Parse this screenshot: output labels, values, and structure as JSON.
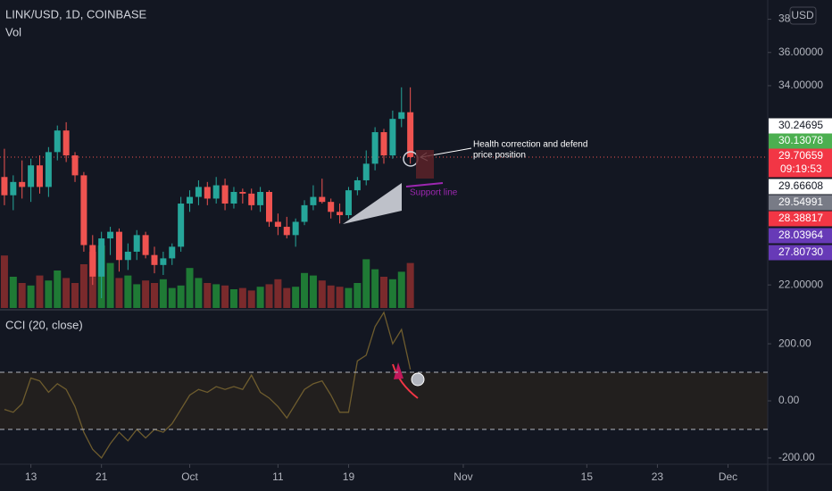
{
  "header": {
    "title": "LINK/USD, 1D, COINBASE",
    "volume_label": "Vol",
    "currency": "USD"
  },
  "chart_data": [
    {
      "type": "candlestick",
      "xlim": [
        -0.5,
        86.5
      ],
      "xticks": [
        {
          "value": 3,
          "label": "13"
        },
        {
          "value": 11,
          "label": "21"
        },
        {
          "value": 21,
          "label": "Oct"
        },
        {
          "value": 31,
          "label": "11"
        },
        {
          "value": 39,
          "label": "19"
        },
        {
          "value": 52,
          "label": "Nov"
        },
        {
          "value": 66,
          "label": "15"
        },
        {
          "value": 74,
          "label": "23"
        },
        {
          "value": 82,
          "label": "Dec"
        }
      ],
      "ylim": [
        20.61,
        39.16
      ],
      "yticks": [
        {
          "value": 22,
          "label": "22.00000"
        },
        {
          "value": 34,
          "label": "34.00000"
        },
        {
          "value": 36,
          "label": "36.00000"
        },
        {
          "value": 38,
          "label": "38"
        }
      ],
      "up_color": "#26a69a",
      "down_color": "#ef5350",
      "open": [
        28.5,
        27.4,
        28.2,
        27.9,
        29.2,
        27.9,
        30.0,
        31.3,
        29.8,
        28.6,
        24.4,
        22.5,
        24.8,
        25.2,
        23.5,
        24.0,
        25.0,
        23.8,
        23.2,
        23.6,
        24.3,
        26.9,
        27.3,
        27.9,
        27.2,
        28.0,
        26.9,
        27.6,
        27.5,
        26.8,
        27.6,
        25.8,
        25.5,
        25.0,
        25.8,
        26.8,
        27.3,
        27.0,
        26.4,
        26.2,
        27.7,
        28.3,
        29.3,
        31.2,
        29.8,
        32.0,
        32.4
      ],
      "high": [
        30.2,
        28.6,
        29.5,
        29.6,
        29.8,
        30.3,
        31.6,
        31.8,
        30.0,
        28.8,
        25.0,
        25.2,
        25.5,
        25.4,
        24.5,
        25.3,
        25.2,
        24.3,
        24.0,
        24.5,
        27.3,
        27.7,
        28.3,
        28.2,
        28.5,
        28.4,
        27.9,
        27.8,
        27.8,
        27.9,
        27.7,
        26.3,
        26.1,
        26.0,
        27.1,
        28.0,
        28.4,
        27.2,
        26.9,
        27.9,
        28.5,
        30.1,
        31.5,
        31.4,
        32.5,
        33.9,
        33.9
      ],
      "low": [
        26.8,
        26.5,
        27.2,
        27.0,
        27.5,
        27.3,
        29.5,
        29.4,
        28.2,
        24.0,
        22.0,
        21.2,
        23.8,
        22.8,
        22.9,
        23.5,
        23.6,
        22.7,
        22.6,
        23.2,
        24.0,
        26.4,
        26.8,
        26.8,
        26.9,
        26.5,
        26.6,
        26.9,
        26.5,
        26.4,
        25.5,
        25.0,
        24.8,
        24.3,
        25.6,
        26.5,
        26.9,
        26.0,
        25.7,
        26.0,
        27.4,
        28.0,
        28.9,
        29.3,
        29.6,
        31.5,
        29.3
      ],
      "close": [
        27.4,
        28.2,
        27.9,
        29.2,
        27.9,
        30.0,
        31.3,
        29.8,
        28.6,
        24.4,
        22.5,
        24.8,
        25.2,
        23.5,
        24.0,
        25.0,
        23.8,
        23.2,
        23.6,
        24.3,
        26.9,
        27.3,
        27.9,
        27.2,
        28.0,
        26.9,
        27.6,
        27.5,
        26.8,
        27.6,
        25.8,
        25.5,
        25.0,
        25.8,
        26.8,
        27.3,
        27.0,
        26.4,
        26.2,
        27.7,
        28.3,
        29.3,
        31.2,
        29.8,
        32.0,
        32.4,
        29.7
      ],
      "volume": {
        "up_color": "#1f7a35",
        "down_color": "#7a2a2c",
        "values": [
          4.2,
          2.5,
          2.0,
          1.8,
          2.6,
          2.2,
          3.0,
          2.4,
          2.0,
          3.5,
          4.5,
          5.0,
          3.6,
          2.4,
          2.6,
          1.9,
          2.2,
          2.0,
          2.3,
          1.6,
          1.8,
          3.2,
          2.4,
          2.0,
          1.9,
          1.8,
          1.5,
          1.6,
          1.4,
          1.7,
          1.9,
          2.3,
          1.6,
          1.7,
          2.8,
          2.6,
          2.2,
          1.8,
          1.7,
          1.6,
          2.0,
          3.9,
          3.1,
          2.5,
          2.3,
          2.9,
          3.6
        ]
      },
      "price_tags": [
        {
          "value": 30.24695,
          "label": "30.24695",
          "color": "#ffffff"
        },
        {
          "value": 30.13078,
          "label": "30.13078",
          "color": "#4caf50"
        },
        {
          "value": 29.70659,
          "label": "29.70659",
          "color": "#f23645"
        },
        {
          "value": 29.66608,
          "label": "29.66608",
          "color": "#ffffff"
        },
        {
          "value": 29.54991,
          "label": "29.54991",
          "color": "#787b86"
        },
        {
          "value": 28.38817,
          "label": "28.38817",
          "color": "#f23645"
        },
        {
          "value": 28.03964,
          "label": "28.03964",
          "color": "#673ab7"
        },
        {
          "value": 27.8073,
          "label": "27.80730",
          "color": "#673ab7"
        }
      ],
      "countdown": "09:19:53",
      "callout": [
        "Health correction and defend",
        "price position"
      ],
      "support_label": "Support line"
    },
    {
      "type": "line",
      "title": "CCI (20, close)",
      "color": "#6e5c2e",
      "ylim": [
        -222,
        316
      ],
      "yticks": [
        {
          "value": 200,
          "label": "200.00"
        },
        {
          "value": 0,
          "label": "0.00"
        },
        {
          "value": -200,
          "label": "-200.00"
        }
      ],
      "bands": [
        100,
        -100
      ],
      "band_color": "#221f1e",
      "values": [
        -30,
        -40,
        -10,
        80,
        70,
        30,
        60,
        40,
        -20,
        -110,
        -170,
        -200,
        -150,
        -110,
        -140,
        -100,
        -130,
        -100,
        -110,
        -80,
        -30,
        20,
        40,
        30,
        50,
        40,
        50,
        40,
        90,
        30,
        10,
        -20,
        -60,
        -10,
        40,
        60,
        70,
        20,
        -40,
        -40,
        140,
        160,
        260,
        310,
        200,
        250,
        110
      ]
    }
  ]
}
